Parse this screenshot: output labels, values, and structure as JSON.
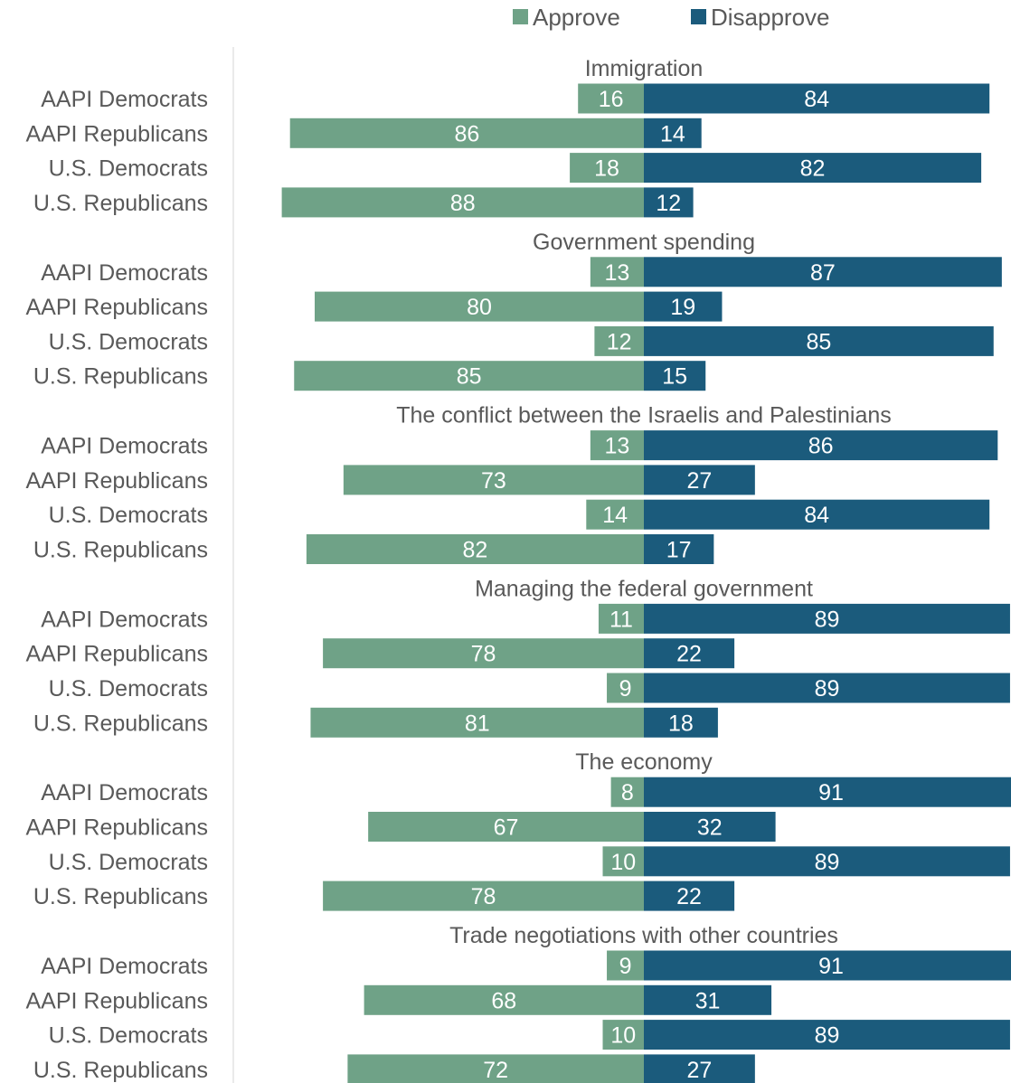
{
  "chart_data": {
    "type": "bar",
    "orientation": "horizontal-diverging",
    "legend": {
      "position": "top",
      "items": [
        {
          "key": "approve",
          "label": "Approve",
          "color": "#6fa287"
        },
        {
          "key": "disapprove",
          "label": "Disapprove",
          "color": "#1b5b7c"
        }
      ]
    },
    "xlim": [
      -100,
      100
    ],
    "grid": false,
    "groups": [
      {
        "title": "Immigration",
        "rows": [
          {
            "label": "AAPI Democrats",
            "approve": 16,
            "disapprove": 84
          },
          {
            "label": "AAPI Republicans",
            "approve": 86,
            "disapprove": 14
          },
          {
            "label": "U.S. Democrats",
            "approve": 18,
            "disapprove": 82
          },
          {
            "label": "U.S. Republicans",
            "approve": 88,
            "disapprove": 12
          }
        ]
      },
      {
        "title": "Government spending",
        "rows": [
          {
            "label": "AAPI Democrats",
            "approve": 13,
            "disapprove": 87
          },
          {
            "label": "AAPI Republicans",
            "approve": 80,
            "disapprove": 19
          },
          {
            "label": "U.S. Democrats",
            "approve": 12,
            "disapprove": 85
          },
          {
            "label": "U.S. Republicans",
            "approve": 85,
            "disapprove": 15
          }
        ]
      },
      {
        "title": "The conflict between the Israelis and Palestinians",
        "rows": [
          {
            "label": "AAPI Democrats",
            "approve": 13,
            "disapprove": 86
          },
          {
            "label": "AAPI Republicans",
            "approve": 73,
            "disapprove": 27
          },
          {
            "label": "U.S. Democrats",
            "approve": 14,
            "disapprove": 84
          },
          {
            "label": "U.S. Republicans",
            "approve": 82,
            "disapprove": 17
          }
        ]
      },
      {
        "title": "Managing the federal government",
        "rows": [
          {
            "label": "AAPI Democrats",
            "approve": 11,
            "disapprove": 89
          },
          {
            "label": "AAPI Republicans",
            "approve": 78,
            "disapprove": 22
          },
          {
            "label": "U.S. Democrats",
            "approve": 9,
            "disapprove": 89
          },
          {
            "label": "U.S. Republicans",
            "approve": 81,
            "disapprove": 18
          }
        ]
      },
      {
        "title": "The economy",
        "rows": [
          {
            "label": "AAPI Democrats",
            "approve": 8,
            "disapprove": 91
          },
          {
            "label": "AAPI Republicans",
            "approve": 67,
            "disapprove": 32
          },
          {
            "label": "U.S. Democrats",
            "approve": 10,
            "disapprove": 89
          },
          {
            "label": "U.S. Republicans",
            "approve": 78,
            "disapprove": 22
          }
        ]
      },
      {
        "title": "Trade negotiations with other countries",
        "rows": [
          {
            "label": "AAPI Democrats",
            "approve": 9,
            "disapprove": 91
          },
          {
            "label": "AAPI Republicans",
            "approve": 68,
            "disapprove": 31
          },
          {
            "label": "U.S. Democrats",
            "approve": 10,
            "disapprove": 89
          },
          {
            "label": "U.S. Republicans",
            "approve": 72,
            "disapprove": 27
          }
        ]
      }
    ]
  }
}
